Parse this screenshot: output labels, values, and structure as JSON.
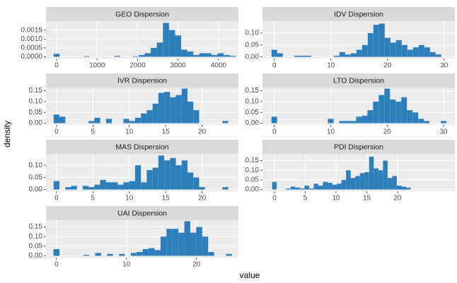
{
  "chart_data": [
    {
      "type": "histogram",
      "title": "GEO Dispersion",
      "color": "#2e7ebc",
      "grid": true,
      "bins": [
        -75,
        75,
        225,
        375,
        525,
        675,
        825,
        975,
        1125,
        1275,
        1425,
        1575,
        1725,
        1875,
        2025,
        2175,
        2325,
        2475,
        2625,
        2775,
        2925,
        3075,
        3225,
        3375,
        3525,
        3675,
        3825,
        3975,
        4125,
        4275,
        4425
      ],
      "values": [
        0.00017,
        0,
        0,
        0,
        0,
        3e-05,
        0,
        0,
        0,
        0,
        5e-05,
        0,
        0,
        3e-05,
        0.0001,
        0.0002,
        0.0005,
        0.0008,
        0.0019,
        0.0015,
        0.0012,
        0.0004,
        0.0003,
        0.0001,
        0.0002,
        0.0002,
        0.0001,
        0.0002,
        0.0001,
        5e-05
      ],
      "xlim": [
        -262,
        4489
      ],
      "xticks": [
        0,
        1000,
        2000,
        3000,
        4000
      ],
      "ylim": [
        -0.0001,
        0.002
      ],
      "yticks": [
        {
          "value": 0,
          "label": "0.0000"
        },
        {
          "value": 0.0005,
          "label": "0.0005"
        },
        {
          "value": 0.001,
          "label": "0.0010"
        },
        {
          "value": 0.0015,
          "label": "0.0015"
        }
      ]
    },
    {
      "type": "histogram",
      "title": "IDV Dispersion",
      "color": "#2e7ebc",
      "grid": true,
      "bins": [
        -0.5,
        0.5,
        1.5,
        2.5,
        3.5,
        4.5,
        5.5,
        6.5,
        7.5,
        8.5,
        9.5,
        10.5,
        11.5,
        12.5,
        13.5,
        14.5,
        15.5,
        16.5,
        17.5,
        18.5,
        19.5,
        20.5,
        21.5,
        22.5,
        23.5,
        24.5,
        25.5,
        26.5,
        27.5,
        28.5,
        29.5,
        30.5
      ],
      "values": [
        0.03,
        0.015,
        0,
        0,
        0.005,
        0.005,
        0.005,
        0,
        0,
        0,
        0,
        0.005,
        0.02,
        0.01,
        0.015,
        0.03,
        0.05,
        0.1,
        0.135,
        0.14,
        0.08,
        0.06,
        0.07,
        0.05,
        0.03,
        0.04,
        0.05,
        0.04,
        0.02,
        0.01,
        0
      ],
      "xlim": [
        -2.1,
        31.9
      ],
      "xticks": [
        0,
        10,
        20,
        30
      ],
      "ylim": [
        -0.007,
        0.15
      ],
      "yticks": [
        {
          "value": 0,
          "label": "0.00"
        },
        {
          "value": 0.05,
          "label": "0.05"
        },
        {
          "value": 0.1,
          "label": "0.10"
        }
      ]
    },
    {
      "type": "histogram",
      "title": "IVR Dispersion",
      "color": "#2e7ebc",
      "grid": true,
      "bins": [
        -0.4,
        0.4,
        1.2,
        2,
        2.8,
        3.6,
        4.4,
        5.2,
        6,
        6.8,
        7.6,
        8.4,
        9.2,
        10,
        10.8,
        11.6,
        12.4,
        13.2,
        14,
        14.8,
        15.6,
        16.4,
        17.2,
        18,
        18.8,
        19.6,
        20.4,
        21.2,
        22,
        22.8,
        23.6
      ],
      "values": [
        0.04,
        0.03,
        0,
        0,
        0,
        0,
        0.01,
        0.025,
        0,
        0.02,
        0,
        0,
        0.02,
        0.01,
        0.025,
        0.045,
        0.06,
        0.09,
        0.14,
        0.145,
        0.12,
        0.13,
        0.16,
        0.1,
        0.06,
        0,
        0,
        0,
        0,
        0.01
      ],
      "xlim": [
        -1.45,
        25
      ],
      "xticks": [
        0,
        5,
        10,
        15,
        20
      ],
      "ylim": [
        -0.008,
        0.165
      ],
      "yticks": [
        {
          "value": 0,
          "label": "0.00"
        },
        {
          "value": 0.05,
          "label": "0.05"
        },
        {
          "value": 0.1,
          "label": "0.10"
        },
        {
          "value": 0.15,
          "label": "0.15"
        }
      ]
    },
    {
      "type": "histogram",
      "title": "LTO Dispersion",
      "color": "#2e7ebc",
      "grid": true,
      "bins": [
        -0.5,
        0.5,
        1.5,
        2.5,
        3.5,
        4.5,
        5.5,
        6.5,
        7.5,
        8.5,
        9.5,
        10.5,
        11.5,
        12.5,
        13.5,
        14.5,
        15.5,
        16.5,
        17.5,
        18.5,
        19.5,
        20.5,
        21.5,
        22.5,
        23.5,
        24.5,
        25.5,
        26.5,
        27.5,
        28.5,
        29.5,
        30.5
      ],
      "values": [
        0.03,
        0,
        0,
        0,
        0,
        0,
        0,
        0,
        0,
        0,
        0.02,
        0,
        0.01,
        0.01,
        0.01,
        0.03,
        0.035,
        0.06,
        0.1,
        0.13,
        0.16,
        0.11,
        0.1,
        0.12,
        0.06,
        0.05,
        0.02,
        0.01,
        0,
        0,
        0.01
      ],
      "xlim": [
        -2.1,
        32
      ],
      "xticks": [
        0,
        10,
        20,
        30
      ],
      "ylim": [
        -0.008,
        0.165
      ],
      "yticks": [
        {
          "value": 0,
          "label": "0.00"
        },
        {
          "value": 0.05,
          "label": "0.05"
        },
        {
          "value": 0.1,
          "label": "0.10"
        },
        {
          "value": 0.15,
          "label": "0.15"
        }
      ]
    },
    {
      "type": "histogram",
      "title": "MAS Dispersion",
      "color": "#2e7ebc",
      "grid": true,
      "bins": [
        -0.4,
        0.4,
        1.2,
        2,
        2.8,
        3.6,
        4.4,
        5.2,
        6,
        6.8,
        7.6,
        8.4,
        9.2,
        10,
        10.8,
        11.6,
        12.4,
        13.2,
        14,
        14.8,
        15.6,
        16.4,
        17.2,
        18,
        18.8,
        19.6,
        20.4,
        21.2,
        22,
        22.8,
        23.6
      ],
      "values": [
        0.035,
        0,
        0.01,
        0.015,
        0,
        0.015,
        0.01,
        0.02,
        0.04,
        0.03,
        0.03,
        0.02,
        0.03,
        0.035,
        0.1,
        0.03,
        0.08,
        0.09,
        0.14,
        0.12,
        0.13,
        0.1,
        0.12,
        0.07,
        0.05,
        0.01,
        0,
        0,
        0,
        0.01
      ],
      "xlim": [
        -1.45,
        25
      ],
      "xticks": [
        0,
        5,
        10,
        15,
        20
      ],
      "ylim": [
        -0.007,
        0.147
      ],
      "yticks": [
        {
          "value": 0,
          "label": "0.00"
        },
        {
          "value": 0.05,
          "label": "0.05"
        },
        {
          "value": 0.1,
          "label": "0.10"
        }
      ]
    },
    {
      "type": "histogram",
      "title": "PDI Dispersion",
      "color": "#2e7ebc",
      "grid": true,
      "bins": [
        -0.375,
        0.375,
        1.125,
        1.875,
        2.625,
        3.375,
        4.125,
        4.875,
        5.625,
        6.375,
        7.125,
        7.875,
        8.625,
        9.375,
        10.125,
        10.875,
        11.625,
        12.375,
        13.125,
        13.875,
        14.625,
        15.375,
        16.125,
        16.875,
        17.625,
        18.375,
        19.125,
        19.875,
        20.625,
        21.375,
        22.125
      ],
      "values": [
        0.04,
        0,
        0,
        0.005,
        0.015,
        0.01,
        0.005,
        0.02,
        0.005,
        0.03,
        0.02,
        0.04,
        0.035,
        0.025,
        0.03,
        0.05,
        0.1,
        0.06,
        0.07,
        0.085,
        0.09,
        0.17,
        0.11,
        0.1,
        0.15,
        0.06,
        0.07,
        0.02,
        0.015,
        0.01
      ],
      "xlim": [
        -1.95,
        29.3
      ],
      "xticks": [
        0,
        5,
        10,
        15,
        20
      ],
      "ylim": [
        -0.009,
        0.185
      ],
      "yticks": [
        {
          "value": 0,
          "label": "0.00"
        },
        {
          "value": 0.05,
          "label": "0.05"
        },
        {
          "value": 0.1,
          "label": "0.10"
        },
        {
          "value": 0.15,
          "label": "0.15"
        }
      ]
    },
    {
      "type": "histogram",
      "title": "UAI Dispersion",
      "color": "#2e7ebc",
      "grid": true,
      "bins": [
        -0.425,
        0.425,
        1.275,
        2.125,
        2.975,
        3.825,
        4.675,
        5.525,
        6.375,
        7.225,
        8.075,
        8.925,
        9.775,
        10.625,
        11.475,
        12.325,
        13.175,
        14.025,
        14.875,
        15.725,
        16.575,
        17.425,
        18.275,
        19.125,
        19.975,
        20.825,
        21.675,
        22.525,
        23.375,
        24.225,
        25.075
      ],
      "values": [
        0.035,
        0,
        0,
        0,
        0,
        0.005,
        0,
        0.015,
        0,
        0.01,
        0,
        0.01,
        0,
        0.015,
        0.02,
        0.035,
        0.04,
        0.03,
        0.1,
        0.14,
        0.14,
        0.12,
        0.18,
        0.12,
        0.15,
        0.1,
        0.02,
        0,
        0,
        0.01
      ],
      "xlim": [
        -1.5,
        26
      ],
      "xticks": [
        0,
        10,
        20
      ],
      "ylim": [
        -0.009,
        0.185
      ],
      "yticks": [
        {
          "value": 0,
          "label": "0.00"
        },
        {
          "value": 0.05,
          "label": "0.05"
        },
        {
          "value": 0.1,
          "label": "0.10"
        },
        {
          "value": 0.15,
          "label": "0.15"
        }
      ]
    }
  ],
  "xlabel": "value",
  "ylabel": "density"
}
